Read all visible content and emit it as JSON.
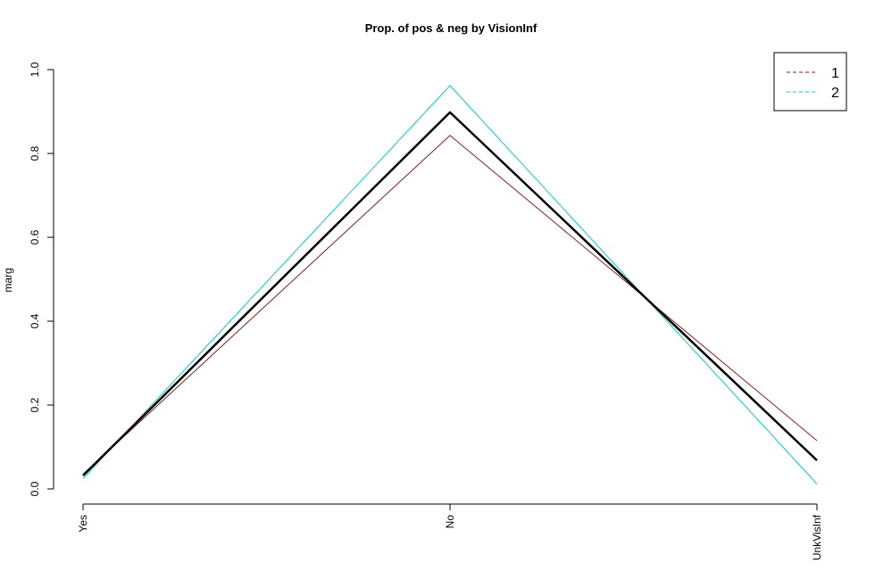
{
  "chart_data": {
    "type": "line",
    "title": "Prop. of pos & neg by VisionInf",
    "xlabel": "",
    "ylabel": "marg",
    "categories": [
      "Yes",
      "No",
      "UnkVisInf"
    ],
    "ylim": [
      0,
      1
    ],
    "yticks": [
      "0.0",
      "0.2",
      "0.4",
      "0.6",
      "0.8",
      "1.0"
    ],
    "grid": false,
    "legend_position": "top-right",
    "series": [
      {
        "name": "1",
        "values": [
          0.035,
          0.843,
          0.115
        ],
        "color": "#8b1a1a",
        "legend": true
      },
      {
        "name": "2",
        "values": [
          0.025,
          0.962,
          0.012
        ],
        "color": "#00cdcd",
        "legend": true
      },
      {
        "values": [
          0.032,
          0.898,
          0.068
        ],
        "color": "#000000",
        "legend": false
      }
    ]
  }
}
